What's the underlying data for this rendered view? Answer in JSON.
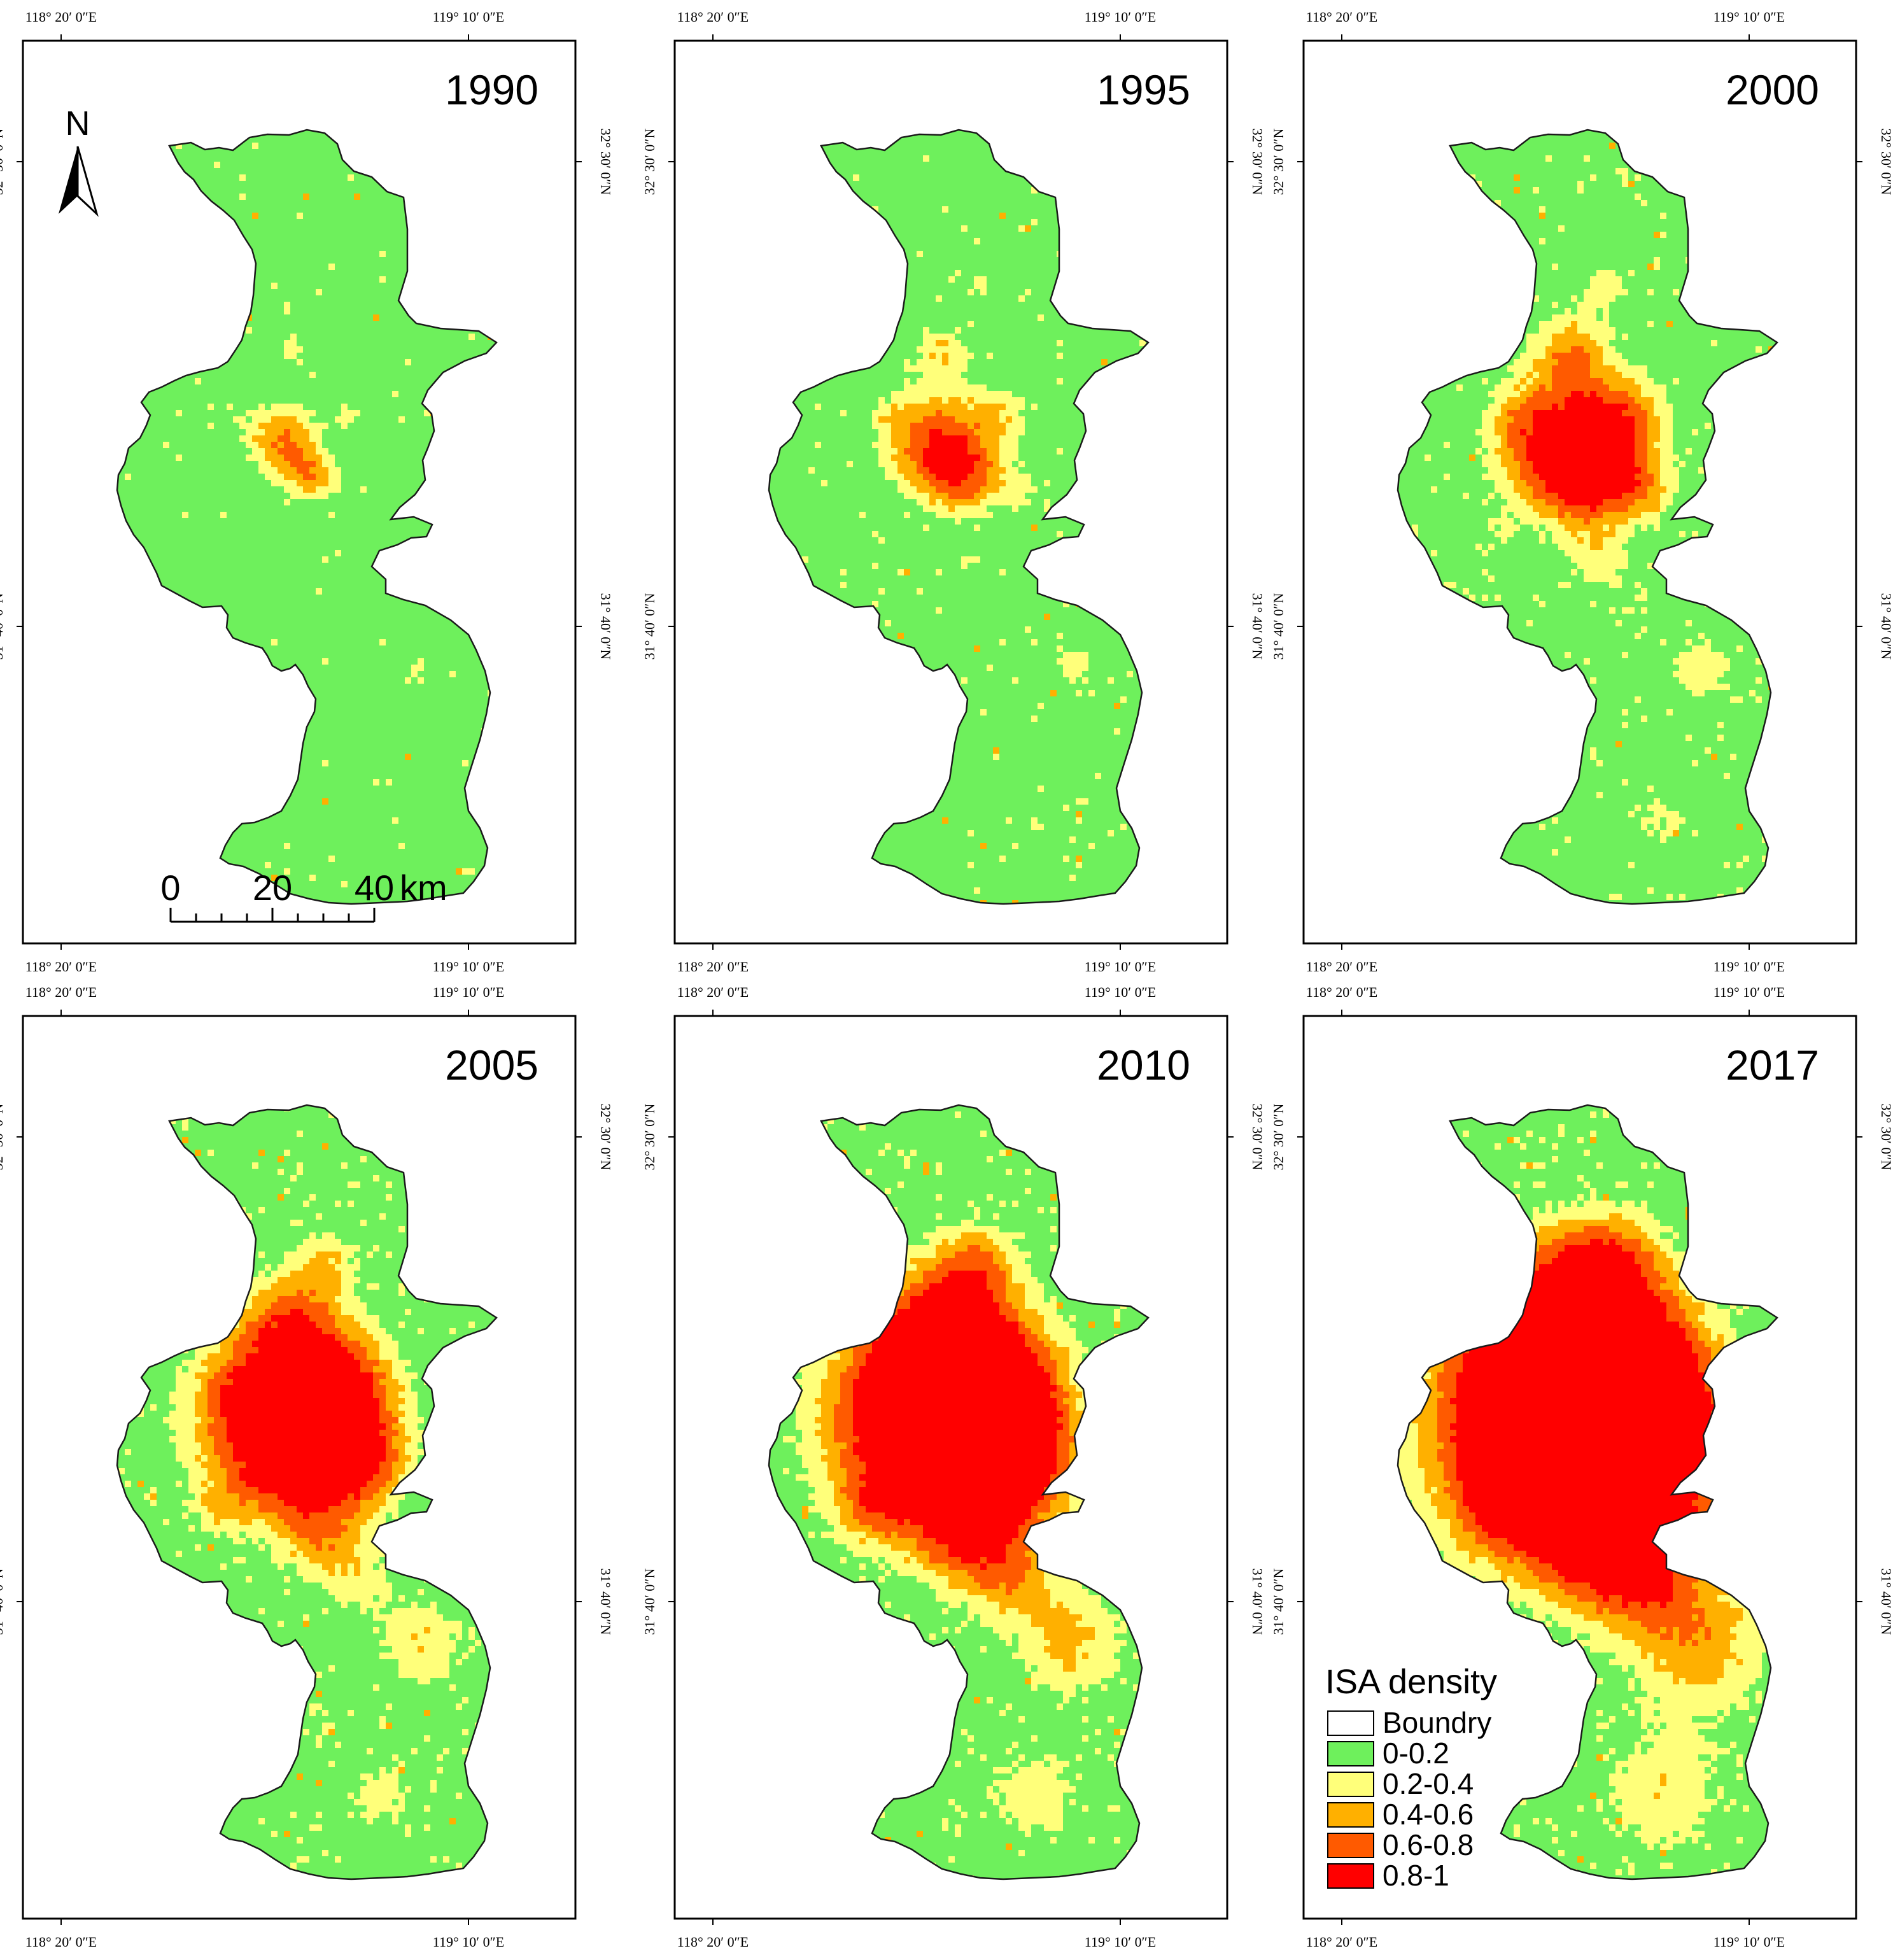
{
  "panels": [
    {
      "year": "1990",
      "level": 1
    },
    {
      "year": "1995",
      "level": 2
    },
    {
      "year": "2000",
      "level": 3
    },
    {
      "year": "2005",
      "level": 4
    },
    {
      "year": "2010",
      "level": 5
    },
    {
      "year": "2017",
      "level": 6
    }
  ],
  "axes": {
    "lon_left": "118° 20′ 0″E",
    "lon_right": "119° 10′ 0″E",
    "lat_upper": "32° 30′ 0″N",
    "lat_lower": "31° 40′ 0″N"
  },
  "north_arrow": {
    "label": "N"
  },
  "scale_bar": {
    "ticks": [
      "0",
      "20",
      "40"
    ],
    "unit": "km"
  },
  "legend": {
    "title": "ISA density",
    "items": [
      {
        "label": "Boundry",
        "color": "#ffffff"
      },
      {
        "label": "0-0.2",
        "color": "#6ef05c"
      },
      {
        "label": "0.2-0.4",
        "color": "#ffff7a"
      },
      {
        "label": "0.4-0.6",
        "color": "#ffb000"
      },
      {
        "label": "0.6-0.8",
        "color": "#ff5a00"
      },
      {
        "label": "0.8-1",
        "color": "#ff0000"
      }
    ]
  },
  "colors": {
    "land": "#6ef05c",
    "low": "#ffff7a",
    "mid": "#ffb000",
    "high": "#ff5a00",
    "core": "#ff0000",
    "boundary": "#1a1a1a"
  }
}
